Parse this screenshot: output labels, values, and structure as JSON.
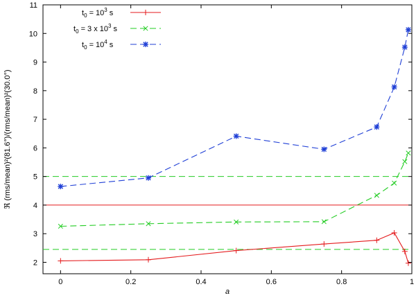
{
  "chart_data": {
    "type": "line",
    "xlabel": "a",
    "ylabel": "ℜ  (rms/mean)²(81.6°)/(rms/mean)²(30.0°)",
    "xlim": [
      -0.05,
      1.0
    ],
    "ylim": [
      1.6,
      11
    ],
    "x_ticks": [
      "0",
      "0.2",
      "0.4",
      "0.6",
      "0.8",
      "1"
    ],
    "y_ticks": [
      "2",
      "3",
      "4",
      "5",
      "6",
      "7",
      "8",
      "9",
      "10",
      "11"
    ],
    "grid": false,
    "legend_position": "top-left",
    "series": [
      {
        "name": "t0 = 10^3 s",
        "color": "#e41a1c",
        "marker": "plus",
        "dash": "solid",
        "points": [
          [
            0,
            2.05
          ],
          [
            0.25,
            2.09
          ],
          [
            0.5,
            2.41
          ],
          [
            0.75,
            2.64
          ],
          [
            0.9,
            2.77
          ],
          [
            0.95,
            3.03
          ],
          [
            0.98,
            2.38
          ],
          [
            0.99,
            1.97
          ]
        ]
      },
      {
        "name": "t0 = 3 x 10^3 s",
        "color": "#22cc22",
        "marker": "cross",
        "dash": "dashed",
        "points": [
          [
            0,
            3.26
          ],
          [
            0.25,
            3.35
          ],
          [
            0.5,
            3.41
          ],
          [
            0.75,
            3.42
          ],
          [
            0.9,
            4.34
          ],
          [
            0.95,
            4.77
          ],
          [
            0.98,
            5.52
          ],
          [
            0.99,
            5.82
          ]
        ]
      },
      {
        "name": "t0 = 10^4 s",
        "color": "#1f3fd6",
        "marker": "star",
        "dash": "dashed",
        "points": [
          [
            0,
            4.65
          ],
          [
            0.25,
            4.95
          ],
          [
            0.5,
            6.41
          ],
          [
            0.75,
            5.95
          ],
          [
            0.9,
            6.73
          ],
          [
            0.95,
            8.13
          ],
          [
            0.98,
            9.52
          ],
          [
            0.99,
            10.13
          ]
        ]
      }
    ],
    "reference_lines": [
      {
        "y": 4.0,
        "color": "#e41a1c",
        "dash": "solid"
      },
      {
        "y": 5.0,
        "color": "#22cc22",
        "dash": "dashed"
      },
      {
        "y": 2.45,
        "color": "#22cc22",
        "dash": "dashed"
      }
    ]
  }
}
